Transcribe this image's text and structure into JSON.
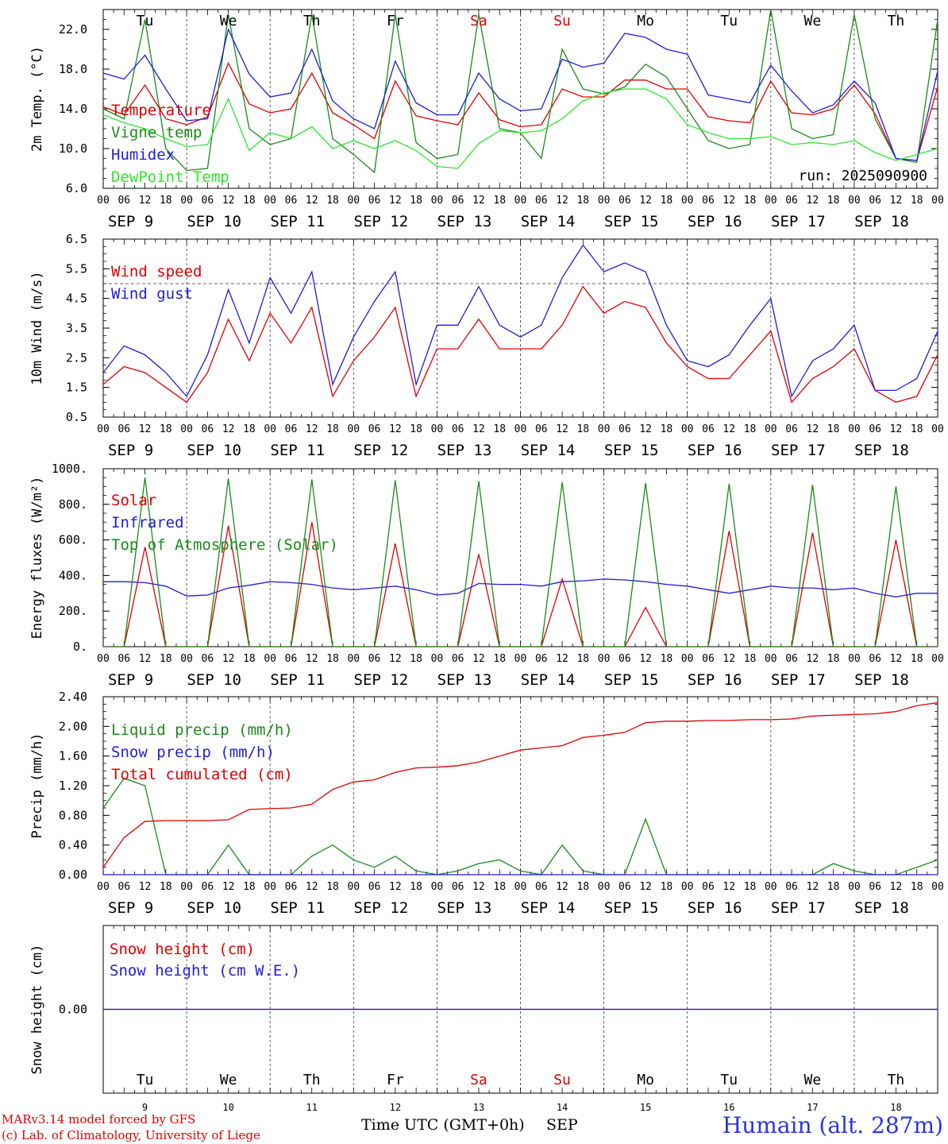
{
  "colors": {
    "red": "#e00000",
    "green": "#1a8a1a",
    "blue": "#1f1fd6",
    "light_green": "#2ee62e",
    "black": "#000000",
    "station": "#2a36e0"
  },
  "days": [
    "Tu",
    "We",
    "Th",
    "Fr",
    "Sa",
    "Su",
    "Mo",
    "Tu",
    "We",
    "Th"
  ],
  "weekend_days": [
    4,
    5
  ],
  "dates": [
    "SEP  9",
    "SEP 10",
    "SEP 11",
    "SEP 12",
    "SEP 13",
    "SEP 14",
    "SEP 15",
    "SEP 16",
    "SEP 17",
    "SEP 18"
  ],
  "day_numbers": [
    "9",
    "10",
    "11",
    "12",
    "13",
    "14",
    "15",
    "16",
    "17",
    "18"
  ],
  "hour_ticks": [
    "00",
    "06",
    "12",
    "18"
  ],
  "run_label": "run: 2025090900",
  "xlabel": "Time UTC (GMT+0h)",
  "xlabel_month": "SEP",
  "credits": {
    "line1": "MARv3.14 model forced by GFS",
    "line2": "(c) Lab. of Climatology, University of Liege"
  },
  "station": "Humain (alt. 287m)",
  "chart_data": [
    {
      "type": "line",
      "ylabel": "2m Temp. (°C)",
      "ylim": [
        6,
        24
      ],
      "yticks": [
        "6.0",
        "10.0",
        "14.0",
        "18.0",
        "22.0"
      ],
      "ytick_values": [
        6,
        10,
        14,
        18,
        22
      ],
      "x": [
        0,
        6,
        12,
        18,
        24,
        30,
        36,
        42,
        48,
        54,
        60,
        66,
        72,
        78,
        84,
        90,
        96,
        102,
        108,
        114,
        120,
        126,
        132,
        138,
        144,
        150,
        156,
        162,
        168,
        174,
        180,
        186,
        192,
        198,
        204,
        210,
        216,
        222,
        228,
        234,
        240
      ],
      "series": [
        {
          "name": "Temperature",
          "color": "#e00000",
          "values": [
            14.2,
            13.4,
            16.4,
            13.0,
            12.4,
            13.2,
            18.6,
            14.5,
            13.6,
            14.0,
            17.6,
            13.6,
            12.4,
            11.0,
            16.8,
            13.3,
            12.8,
            12.4,
            15.6,
            12.9,
            12.2,
            12.4,
            16.0,
            15.2,
            15.2,
            16.9,
            16.9,
            16.0,
            16.0,
            13.2,
            12.8,
            12.6,
            16.8,
            13.6,
            13.4,
            14.0,
            16.4,
            13.5,
            9.0,
            8.8,
            16.2
          ]
        },
        {
          "name": "Vigne temp",
          "color": "#1a8a1a",
          "values": [
            14.0,
            13.0,
            23.0,
            10.0,
            7.8,
            8.0,
            23.5,
            12.0,
            10.4,
            11.0,
            23.5,
            11.0,
            9.4,
            7.6,
            23.5,
            10.6,
            9.0,
            9.4,
            23.5,
            12.0,
            11.6,
            9.0,
            20.0,
            16.0,
            15.5,
            16.2,
            18.5,
            17.2,
            14.0,
            10.8,
            10.0,
            10.4,
            24.0,
            12.0,
            11.0,
            11.4,
            23.5,
            13.0,
            9.0,
            8.6,
            23.0
          ]
        },
        {
          "name": "Humidex",
          "color": "#1f1fd6",
          "values": [
            17.6,
            17.0,
            19.4,
            16.0,
            12.8,
            13.0,
            22.0,
            17.5,
            15.2,
            15.6,
            20.0,
            14.8,
            13.0,
            12.0,
            18.8,
            14.6,
            13.4,
            13.4,
            17.6,
            15.0,
            13.8,
            14.0,
            19.0,
            18.2,
            18.6,
            21.6,
            21.2,
            20.0,
            19.5,
            15.4,
            15.0,
            14.6,
            18.4,
            15.8,
            13.6,
            14.4,
            16.8,
            14.6,
            9.0,
            8.8,
            17.8
          ]
        },
        {
          "name": "DewPoint Temp",
          "color": "#2ee62e",
          "values": [
            13.4,
            12.6,
            12.0,
            11.0,
            10.2,
            10.4,
            15.0,
            9.8,
            11.6,
            11.0,
            12.2,
            10.0,
            10.8,
            10.0,
            10.8,
            9.8,
            8.2,
            8.0,
            10.5,
            11.8,
            11.6,
            11.8,
            13.0,
            14.8,
            15.6,
            16.0,
            16.0,
            15.0,
            12.4,
            11.6,
            11.0,
            11.0,
            11.2,
            10.4,
            10.6,
            10.4,
            10.8,
            9.6,
            8.8,
            9.4,
            10.0
          ]
        }
      ]
    },
    {
      "type": "line",
      "ylabel": "10m Wind (m/s)",
      "ylim": [
        0.5,
        6.5
      ],
      "yticks": [
        "0.5",
        "1.5",
        "2.5",
        "3.5",
        "4.5",
        "5.5",
        "6.5"
      ],
      "ytick_values": [
        0.5,
        1.5,
        2.5,
        3.5,
        4.5,
        5.5,
        6.5
      ],
      "reference_line": 5.0,
      "x": [
        0,
        6,
        12,
        18,
        24,
        30,
        36,
        42,
        48,
        54,
        60,
        66,
        72,
        78,
        84,
        90,
        96,
        102,
        108,
        114,
        120,
        126,
        132,
        138,
        144,
        150,
        156,
        162,
        168,
        174,
        180,
        186,
        192,
        198,
        204,
        210,
        216,
        222,
        228,
        234,
        240
      ],
      "series": [
        {
          "name": "Wind speed",
          "color": "#e00000",
          "values": [
            1.6,
            2.2,
            2.0,
            1.5,
            1.0,
            2.0,
            3.8,
            2.4,
            4.0,
            3.0,
            4.2,
            1.2,
            2.4,
            3.2,
            4.2,
            1.2,
            2.8,
            2.8,
            3.8,
            2.8,
            2.8,
            2.8,
            3.6,
            4.9,
            4.0,
            4.4,
            4.2,
            3.0,
            2.2,
            1.8,
            1.8,
            2.6,
            3.4,
            1.0,
            1.8,
            2.2,
            2.8,
            1.4,
            1.0,
            1.2,
            2.6
          ]
        },
        {
          "name": "Wind gust",
          "color": "#1f1fd6",
          "values": [
            2.0,
            2.9,
            2.6,
            2.0,
            1.2,
            2.6,
            4.8,
            3.0,
            5.2,
            4.0,
            5.4,
            1.6,
            3.2,
            4.4,
            5.4,
            1.6,
            3.6,
            3.6,
            4.9,
            3.6,
            3.2,
            3.6,
            5.2,
            6.3,
            5.4,
            5.7,
            5.4,
            3.6,
            2.4,
            2.2,
            2.6,
            3.6,
            4.5,
            1.2,
            2.4,
            2.8,
            3.6,
            1.4,
            1.4,
            1.8,
            3.4
          ]
        }
      ]
    },
    {
      "type": "line",
      "ylabel": "Energy fluxes (W/m²)",
      "ylim": [
        0,
        1000
      ],
      "yticks": [
        "0.",
        "200.",
        "400.",
        "600.",
        "800.",
        "1000."
      ],
      "ytick_values": [
        0,
        200,
        400,
        600,
        800,
        1000
      ],
      "x": [
        0,
        6,
        12,
        18,
        24,
        30,
        36,
        42,
        48,
        54,
        60,
        66,
        72,
        78,
        84,
        90,
        96,
        102,
        108,
        114,
        120,
        126,
        132,
        138,
        144,
        150,
        156,
        162,
        168,
        174,
        180,
        186,
        192,
        198,
        204,
        210,
        216,
        222,
        228,
        234,
        240
      ],
      "series": [
        {
          "name": "Solar",
          "color": "#e00000",
          "values": [
            0,
            0,
            560,
            0,
            0,
            0,
            680,
            0,
            0,
            0,
            700,
            0,
            0,
            0,
            580,
            0,
            0,
            0,
            520,
            0,
            0,
            0,
            380,
            0,
            0,
            0,
            220,
            0,
            0,
            0,
            650,
            0,
            0,
            0,
            640,
            0,
            0,
            0,
            600,
            0,
            0
          ]
        },
        {
          "name": "Infrared",
          "color": "#1f1fd6",
          "values": [
            365,
            365,
            360,
            340,
            285,
            290,
            330,
            345,
            365,
            360,
            350,
            330,
            320,
            330,
            340,
            320,
            290,
            300,
            355,
            350,
            350,
            340,
            365,
            370,
            380,
            375,
            365,
            350,
            340,
            320,
            300,
            320,
            340,
            330,
            330,
            320,
            330,
            300,
            280,
            300,
            300
          ]
        },
        {
          "name": "Top of Atmosphere (Solar)",
          "color": "#1a8a1a",
          "values": [
            0,
            0,
            950,
            0,
            0,
            0,
            945,
            0,
            0,
            0,
            940,
            0,
            0,
            0,
            935,
            0,
            0,
            0,
            930,
            0,
            0,
            0,
            925,
            0,
            0,
            0,
            920,
            0,
            0,
            0,
            915,
            0,
            0,
            0,
            910,
            0,
            0,
            0,
            900,
            0,
            0
          ]
        }
      ]
    },
    {
      "type": "line",
      "ylabel": "Precip (mm/h)",
      "ylim": [
        0,
        2.4
      ],
      "yticks": [
        "0.00",
        "0.40",
        "0.80",
        "1.20",
        "1.60",
        "2.00",
        "2.40"
      ],
      "ytick_values": [
        0,
        0.4,
        0.8,
        1.2,
        1.6,
        2.0,
        2.4
      ],
      "x": [
        0,
        6,
        12,
        18,
        24,
        30,
        36,
        42,
        48,
        54,
        60,
        66,
        72,
        78,
        84,
        90,
        96,
        102,
        108,
        114,
        120,
        126,
        132,
        138,
        144,
        150,
        156,
        162,
        168,
        174,
        180,
        186,
        192,
        198,
        204,
        210,
        216,
        222,
        228,
        234,
        240
      ],
      "series": [
        {
          "name": "Liquid precip (mm/h)",
          "color": "#1a8a1a",
          "values": [
            0.9,
            1.3,
            1.2,
            0.0,
            0.0,
            0.0,
            0.4,
            0.0,
            0.0,
            0.0,
            0.25,
            0.4,
            0.2,
            0.1,
            0.25,
            0.05,
            0.0,
            0.05,
            0.15,
            0.2,
            0.05,
            0.0,
            0.4,
            0.05,
            0.0,
            0.0,
            0.75,
            0.0,
            0.0,
            0.0,
            0.0,
            0.0,
            0.0,
            0.0,
            0.0,
            0.15,
            0.05,
            0.0,
            0.0,
            0.1,
            0.2
          ]
        },
        {
          "name": "Snow precip (mm/h)",
          "color": "#1f1fd6",
          "values": [
            0,
            0,
            0,
            0,
            0,
            0,
            0,
            0,
            0,
            0,
            0,
            0,
            0,
            0,
            0,
            0,
            0,
            0,
            0,
            0,
            0,
            0,
            0,
            0,
            0,
            0,
            0,
            0,
            0,
            0,
            0,
            0,
            0,
            0,
            0,
            0,
            0,
            0,
            0,
            0,
            0
          ]
        },
        {
          "name": "Total cumulated (cm)",
          "color": "#e00000",
          "values": [
            0.1,
            0.5,
            0.72,
            0.73,
            0.73,
            0.73,
            0.74,
            0.88,
            0.89,
            0.9,
            0.95,
            1.15,
            1.25,
            1.28,
            1.38,
            1.44,
            1.45,
            1.47,
            1.52,
            1.6,
            1.68,
            1.71,
            1.74,
            1.85,
            1.88,
            1.92,
            2.05,
            2.07,
            2.07,
            2.08,
            2.08,
            2.09,
            2.09,
            2.1,
            2.14,
            2.15,
            2.16,
            2.17,
            2.2,
            2.28,
            2.32
          ]
        }
      ]
    },
    {
      "type": "line",
      "ylabel": "Snow height (cm)",
      "ylim": [
        -1,
        1
      ],
      "yticks": [
        "0.00"
      ],
      "ytick_values": [
        0
      ],
      "x": [
        0,
        240
      ],
      "series": [
        {
          "name": "Snow height (cm)",
          "color": "#e00000",
          "values": [
            0,
            0
          ]
        },
        {
          "name": "Snow height (cm W.E.)",
          "color": "#1f1fd6",
          "values": [
            0,
            0
          ]
        }
      ]
    }
  ]
}
